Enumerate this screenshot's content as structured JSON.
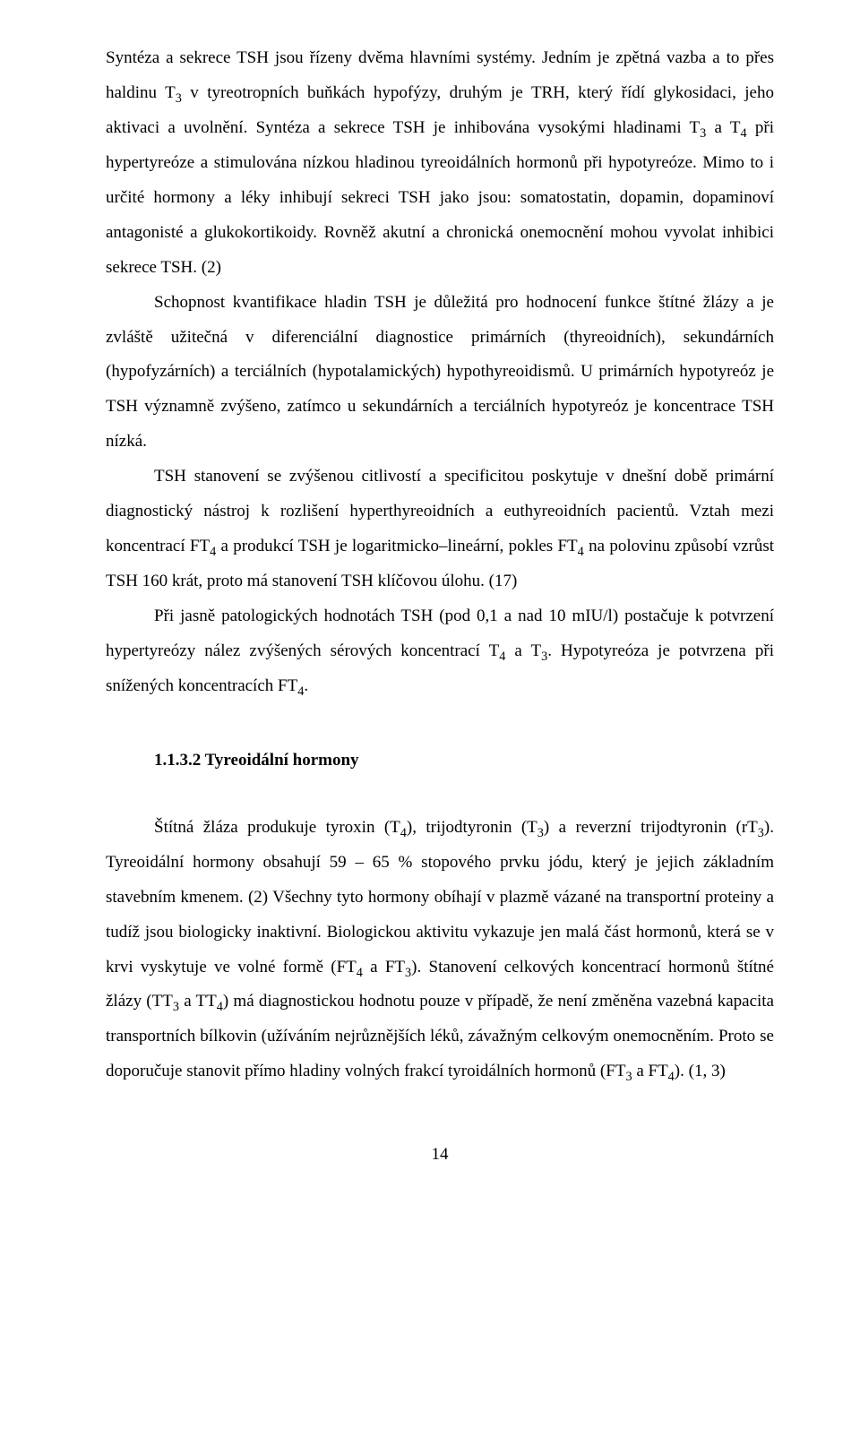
{
  "body": {
    "p1": {
      "seg1": "Syntéza a sekrece TSH jsou řízeny dvěma hlavními systémy. Jedním je zpětná vazba a to přes haldinu T",
      "sub1": "3",
      "seg2": " v tyreotropních buňkách hypofýzy, druhým je TRH, který řídí glykosidaci, jeho aktivaci a uvolnění. Syntéza a sekrece TSH je inhibována vysokými hladinami T",
      "sub2": "3",
      "seg3": " a T",
      "sub3": "4",
      "seg4": " při hypertyreóze a stimulována nízkou hladinou tyreoidálních hormonů při hypotyreóze. Mimo to i určité hormony a léky inhibují sekreci TSH jako jsou: somatostatin, dopamin, dopaminoví antagonisté a glukokortikoidy. Rovněž akutní a chronická onemocnění mohou vyvolat inhibici sekrece TSH. (2)"
    },
    "p2": "Schopnost kvantifikace hladin TSH je důležitá pro hodnocení funkce štítné žlázy a je zvláště užitečná v diferenciální diagnostice primárních (thyreoidních), sekundárních (hypofyzárních) a terciálních (hypotalamických) hypothyreoidismů. U primárních hypotyreóz je TSH významně zvýšeno, zatímco u sekundárních a terciálních hypotyreóz je koncentrace TSH nízká.",
    "p3": {
      "seg1": "TSH stanovení se zvýšenou citlivostí a specificitou poskytuje v dnešní době primární diagnostický nástroj k rozlišení hyperthyreoidních a euthyreoidních pacientů. Vztah mezi koncentrací FT",
      "sub1": "4",
      "seg2": " a produkcí TSH je logaritmicko–lineární, pokles FT",
      "sub2": "4",
      "seg3": " na polovinu způsobí vzrůst TSH 160 krát, proto má stanovení TSH klíčovou úlohu. (17)"
    },
    "p4": {
      "seg1": "Při jasně patologických hodnotách TSH (pod 0,1 a nad 10 mIU/l) postačuje k potvrzení hypertyreózy nález zvýšených sérových koncentrací T",
      "sub1": "4",
      "seg2": " a T",
      "sub2": "3",
      "seg3": ". Hypotyreóza je potvrzena při snížených koncentracích FT",
      "sub3": "4",
      "seg4": "."
    }
  },
  "heading": "1.1.3.2 Tyreoidální hormony",
  "body2": {
    "p5": {
      "seg1": "Štítná žláza produkuje tyroxin (T",
      "sub1": "4",
      "seg2": "), trijodtyronin (T",
      "sub2": "3",
      "seg3": ") a reverzní trijodtyronin (rT",
      "sub3": "3",
      "seg4": "). Tyreoidální hormony obsahují 59 – 65 % stopového prvku jódu, který je jejich základním stavebním kmenem. (2) Všechny tyto hormony obíhají v plazmě vázané na transportní proteiny a tudíž jsou biologicky inaktivní. Biologickou aktivitu vykazuje jen malá část hormonů, která se v krvi vyskytuje ve volné formě (FT",
      "sub4": "4",
      "seg5": " a FT",
      "sub5": "3",
      "seg6": "). Stanovení celkových koncentrací hormonů štítné žlázy (TT",
      "sub6": "3",
      "seg7": " a TT",
      "sub7": "4",
      "seg8": ") má diagnostickou hodnotu pouze v případě, že není změněna vazebná kapacita transportních bílkovin (užíváním nejrůznějších léků, závažným celkovým onemocněním. Proto se doporučuje stanovit přímo hladiny volných frakcí tyroidálních hormonů (FT",
      "sub8": "3",
      "seg9": " a FT",
      "sub9": "4",
      "seg10": "). (1, 3)"
    }
  },
  "pageNumber": "14"
}
